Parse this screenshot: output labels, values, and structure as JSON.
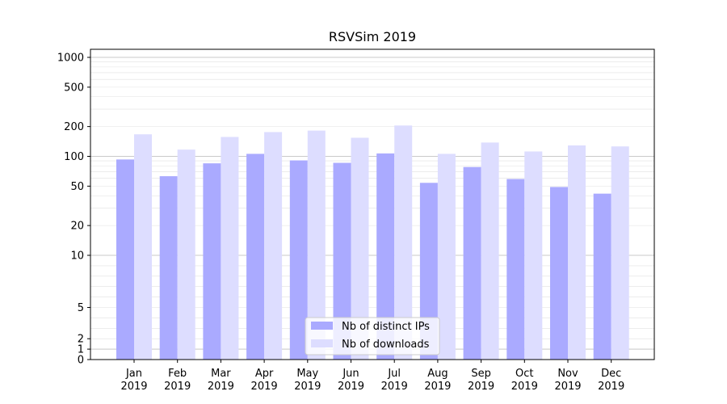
{
  "chart_data": {
    "type": "bar",
    "title": "RSVSim 2019",
    "xlabel": "",
    "ylabel": "",
    "yscale": "symlog",
    "ylim": [
      0,
      1200
    ],
    "categories": [
      [
        "Jan",
        "2019"
      ],
      [
        "Feb",
        "2019"
      ],
      [
        "Mar",
        "2019"
      ],
      [
        "Apr",
        "2019"
      ],
      [
        "May",
        "2019"
      ],
      [
        "Jun",
        "2019"
      ],
      [
        "Jul",
        "2019"
      ],
      [
        "Aug",
        "2019"
      ],
      [
        "Sep",
        "2019"
      ],
      [
        "Oct",
        "2019"
      ],
      [
        "Nov",
        "2019"
      ],
      [
        "Dec",
        "2019"
      ]
    ],
    "yticks": [
      0,
      1,
      2,
      5,
      10,
      20,
      50,
      100,
      200,
      500,
      1000
    ],
    "ytick_labels": [
      "0",
      "1",
      "2",
      "5",
      "10",
      "20",
      "50",
      "100",
      "200",
      "500",
      "1000"
    ],
    "grid": true,
    "legend_position": "bottom-center",
    "series": [
      {
        "name": "Nb of distinct IPs",
        "color": "#aaaaff",
        "values": [
          93,
          63,
          85,
          106,
          91,
          86,
          107,
          54,
          78,
          59,
          49,
          42
        ]
      },
      {
        "name": "Nb of downloads",
        "color": "#ddddff",
        "values": [
          167,
          117,
          157,
          176,
          182,
          154,
          205,
          106,
          138,
          112,
          129,
          126
        ]
      }
    ]
  }
}
